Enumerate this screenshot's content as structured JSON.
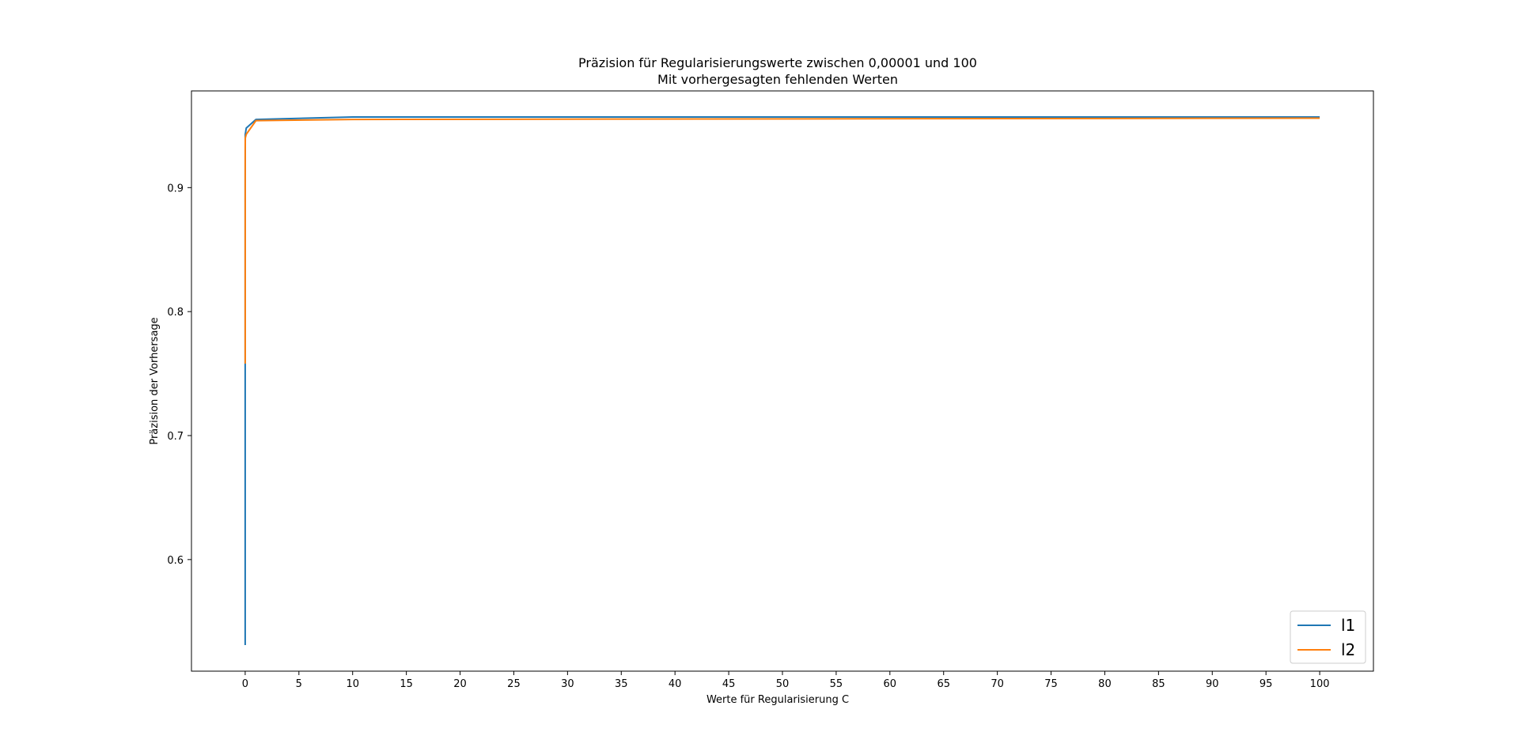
{
  "chart_data": {
    "type": "line",
    "title": "Präzision für Regularisierungswerte zwischen 0,00001 und 100",
    "subtitle": "Mit vorhergesagten fehlenden Werten",
    "xlabel": "Werte für Regularisierung C",
    "ylabel": "Präzision der Vorhersage",
    "xlim": [
      -5,
      105
    ],
    "ylim": [
      0.51,
      0.978
    ],
    "xticks": [
      0,
      5,
      10,
      15,
      20,
      25,
      30,
      35,
      40,
      45,
      50,
      55,
      60,
      65,
      70,
      75,
      80,
      85,
      90,
      95,
      100
    ],
    "xtick_labels": [
      "0",
      "5",
      "10",
      "15",
      "20",
      "25",
      "30",
      "35",
      "40",
      "45",
      "50",
      "55",
      "60",
      "65",
      "70",
      "75",
      "80",
      "85",
      "90",
      "95",
      "100"
    ],
    "yticks": [
      0.6,
      0.7,
      0.8,
      0.9
    ],
    "ytick_labels": [
      "0.6",
      "0.7",
      "0.8",
      "0.9"
    ],
    "grid": false,
    "legend_position": "lower-right",
    "series": [
      {
        "name": "l1",
        "color": "#1f77b4",
        "x": [
          1e-05,
          0.0001,
          0.001,
          0.01,
          0.1,
          1,
          10,
          100
        ],
        "y": [
          0.531,
          0.757,
          0.9,
          0.943,
          0.948,
          0.955,
          0.957,
          0.957
        ]
      },
      {
        "name": "l2",
        "color": "#ff7f0e",
        "x": [
          1e-05,
          0.0001,
          0.001,
          0.01,
          0.1,
          1,
          10,
          100
        ],
        "y": [
          0.758,
          0.9,
          0.93,
          0.94,
          0.943,
          0.954,
          0.955,
          0.956
        ]
      }
    ]
  }
}
